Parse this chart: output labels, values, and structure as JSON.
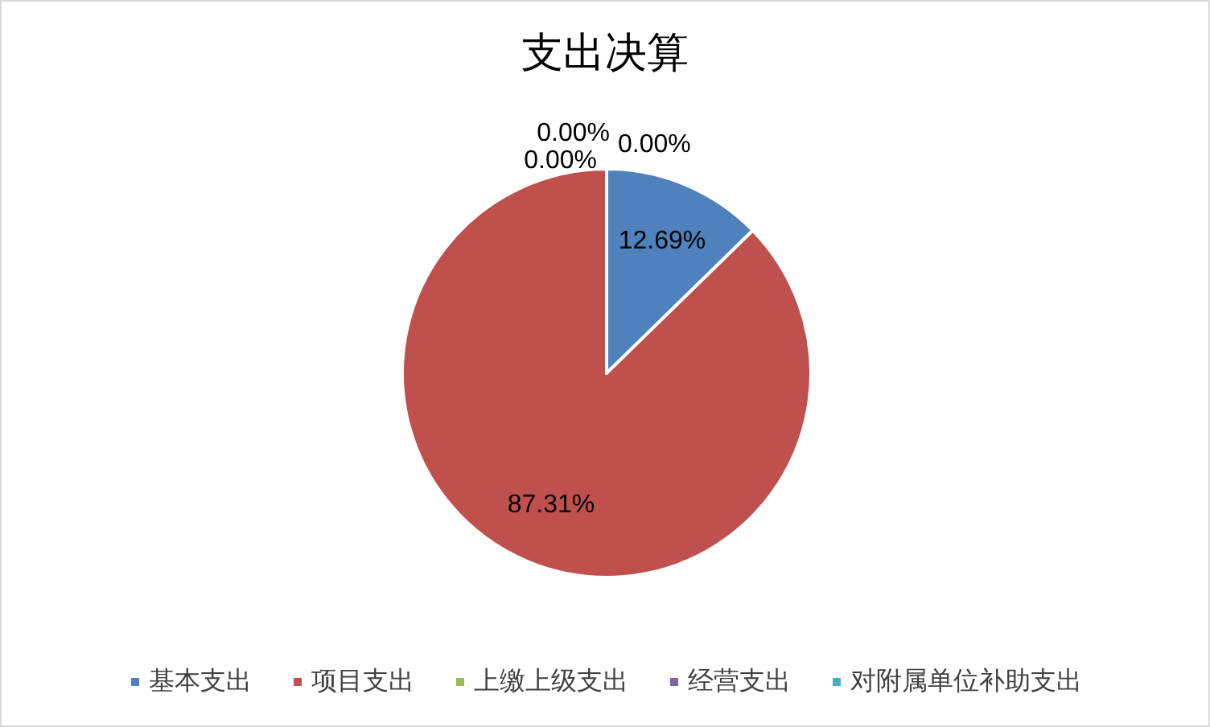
{
  "chart_data": {
    "type": "pie",
    "title": "支出决算",
    "categories": [
      "基本支出",
      "项目支出",
      "上缴上级支出",
      "经营支出",
      "对附属单位补助支出"
    ],
    "values": [
      12.69,
      87.31,
      0,
      0,
      0
    ],
    "colors": [
      "#4f81bd",
      "#c0504d",
      "#9bbb59",
      "#8064a2",
      "#4bacc6"
    ],
    "value_labels": [
      "12.69%",
      "87.31%",
      "0.00%",
      "0.00%",
      "0.00%"
    ],
    "legend": "bottom"
  }
}
